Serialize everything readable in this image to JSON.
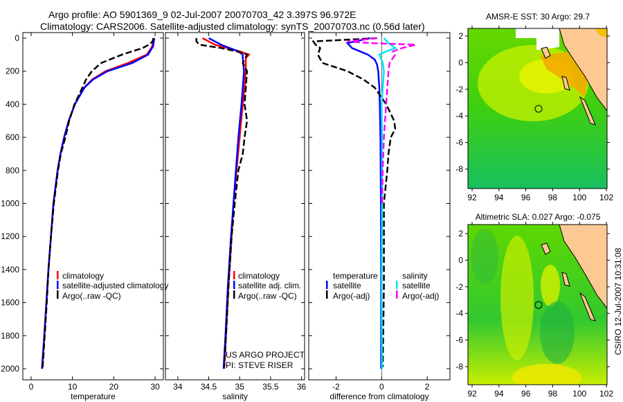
{
  "header": {
    "line1": "Argo profile: AO 5901369_9 02-Jul-2007 20070703_42 3.397S 96.972E",
    "line2": "Climatology: CARS2006. Satellite-adjusted climatology: synTS_20070703.nc (0.56d later)"
  },
  "colors": {
    "climatology": "#ff0000",
    "satellite": "#0000ff",
    "argo": "#000000",
    "sal_satellite": "#00e5ee",
    "sal_argo": "#ff00ff",
    "land": "#fcc993"
  },
  "chart_data": [
    {
      "type": "line",
      "xlabel": "temperature",
      "xlim": [
        -2,
        32
      ],
      "ylim": [
        2050,
        -30
      ],
      "xticks": [
        0,
        10,
        20,
        30
      ],
      "yticks": [
        0,
        200,
        400,
        600,
        800,
        1000,
        1200,
        1400,
        1600,
        1800,
        2000
      ],
      "legend": [
        "climatology",
        "satellite-adjusted climatology",
        "Argo(..raw -QC)"
      ],
      "series": [
        {
          "name": "climatology",
          "color_key": "climatology",
          "dash": false,
          "depth": [
            0,
            50,
            100,
            150,
            200,
            250,
            300,
            400,
            500,
            600,
            700,
            800,
            1000,
            1200,
            1400,
            1600,
            1800,
            2000
          ],
          "values": [
            29.6,
            29.3,
            28,
            23.5,
            18,
            14.8,
            12.8,
            10.6,
            9.1,
            8,
            7.1,
            6.4,
            5.4,
            4.8,
            4.2,
            3.7,
            3.2,
            2.7
          ]
        },
        {
          "name": "satellite-adjusted climatology",
          "color_key": "satellite",
          "dash": false,
          "depth": [
            0,
            50,
            100,
            150,
            200,
            250,
            300,
            400,
            500,
            600,
            700,
            800,
            1000,
            1200,
            1400,
            1600,
            1800,
            2000
          ],
          "values": [
            29.8,
            29.5,
            28.3,
            24.5,
            18.5,
            15,
            12.9,
            10.6,
            9.1,
            8,
            7.1,
            6.4,
            5.4,
            4.8,
            4.2,
            3.7,
            3.2,
            2.6
          ]
        },
        {
          "name": "Argo(..raw -QC)",
          "color_key": "argo",
          "dash": true,
          "depth": [
            0,
            20,
            40,
            60,
            100,
            150,
            200,
            250,
            300,
            400,
            500,
            600,
            700,
            800,
            1000,
            1200,
            1400,
            1600,
            1800,
            1990
          ],
          "values": [
            29.6,
            29.4,
            28.5,
            27,
            22,
            17,
            14.7,
            13.3,
            12.4,
            10.5,
            9.2,
            8.3,
            7.2,
            6.5,
            5.5,
            4.8,
            4.2,
            3.8,
            3.3,
            2.8
          ]
        }
      ]
    },
    {
      "type": "line",
      "xlabel": "salinity",
      "xlim": [
        33.8,
        36.05
      ],
      "ylim": [
        2050,
        -30
      ],
      "xticks": [
        34,
        34.5,
        35,
        35.5,
        36
      ],
      "legend": [
        "climatology",
        "satellite adj. clim.",
        "Argo(..raw -QC)"
      ],
      "annotation": [
        "US ARGO PROJECT",
        "PI: STEVE RISER"
      ],
      "series": [
        {
          "name": "climatology",
          "color_key": "climatology",
          "dash": false,
          "depth": [
            0,
            40,
            80,
            100,
            120,
            200,
            300,
            400,
            600,
            800,
            1000,
            1200,
            1500,
            1800,
            2000
          ],
          "values": [
            34.4,
            34.6,
            35.0,
            35.15,
            35.1,
            35.1,
            35.08,
            35.05,
            35.0,
            34.95,
            34.9,
            34.87,
            34.82,
            34.78,
            34.75
          ]
        },
        {
          "name": "satellite adj. clim.",
          "color_key": "satellite",
          "dash": false,
          "depth": [
            0,
            40,
            80,
            100,
            120,
            200,
            300,
            400,
            600,
            800,
            1000,
            1200,
            1500,
            1800,
            2000
          ],
          "values": [
            34.5,
            34.7,
            34.98,
            35.05,
            35.05,
            35.07,
            35.05,
            35.03,
            34.98,
            34.94,
            34.9,
            34.86,
            34.81,
            34.77,
            34.74
          ]
        },
        {
          "name": "Argo(..raw -QC)",
          "color_key": "argo",
          "dash": true,
          "depth": [
            0,
            20,
            40,
            60,
            80,
            100,
            150,
            200,
            300,
            400,
            500,
            600,
            700,
            800,
            1000,
            1200,
            1500,
            1800,
            1990
          ],
          "values": [
            34.3,
            34.3,
            34.35,
            34.7,
            34.95,
            35.12,
            35.05,
            35.12,
            35.1,
            35.08,
            35.12,
            35.08,
            35.05,
            34.98,
            34.92,
            34.87,
            34.82,
            34.78,
            34.75
          ]
        }
      ]
    },
    {
      "type": "line",
      "xlabel": "difference from climatology",
      "xlim": [
        -3.2,
        3.0
      ],
      "ylim": [
        2050,
        -30
      ],
      "xticks": [
        -2,
        0,
        2
      ],
      "legend": {
        "temperature": "temperature",
        "salinity": "salinity",
        "t_sat": "satellite",
        "t_argo": "Argo(-adj)",
        "s_sat": "satellite",
        "s_argo": "Argo(-adj)"
      },
      "series": [
        {
          "name": "temperature satellite",
          "color_key": "satellite",
          "dash": false,
          "depth": [
            0,
            30,
            60,
            100,
            130,
            160,
            200,
            300,
            400,
            600,
            1000,
            1500,
            2000
          ],
          "values": [
            -0.5,
            -1.5,
            -1.3,
            -0.6,
            -0.3,
            -0.2,
            -0.15,
            -0.1,
            -0.08,
            -0.05,
            -0.03,
            -0.02,
            -0.02
          ]
        },
        {
          "name": "temperature Argo(-adj)",
          "color_key": "argo",
          "dash": true,
          "depth": [
            0,
            20,
            40,
            60,
            100,
            150,
            200,
            250,
            300,
            400,
            500,
            550,
            600,
            700,
            800,
            1000,
            1500,
            1990
          ],
          "values": [
            -0.2,
            -3.0,
            -2.9,
            -2.7,
            -2.8,
            -2.6,
            -1.5,
            -0.8,
            -0.3,
            0.2,
            0.55,
            0.6,
            0.4,
            0.3,
            0.25,
            0.1,
            0.1,
            0.05
          ]
        },
        {
          "name": "salinity satellite",
          "color_key": "sal_satellite",
          "dash": false,
          "depth": [
            0,
            30,
            60,
            80,
            100,
            150,
            200,
            300,
            400,
            600,
            1000,
            1500,
            2000
          ],
          "values": [
            0.1,
            0.3,
            0.6,
            0.2,
            -0.1,
            0.05,
            0.1,
            0.05,
            0.0,
            0.02,
            0.02,
            0.0,
            0.02
          ]
        },
        {
          "name": "salinity Argo(-adj)",
          "color_key": "sal_argo",
          "dash": true,
          "depth": [
            0,
            20,
            30,
            40,
            60,
            80,
            100,
            150,
            200,
            300,
            400,
            500,
            600,
            800,
            1000
          ],
          "values": [
            -0.2,
            -1.5,
            -0.5,
            1.5,
            0.9,
            0.5,
            0.6,
            0.35,
            0.3,
            0.25,
            0.2,
            0.15,
            0.1,
            0.05,
            0.02
          ]
        }
      ]
    },
    {
      "type": "heatmap",
      "title": "AMSR-E SST: 30 Argo: 29.7",
      "xticks": [
        92,
        94,
        96,
        98,
        100,
        102
      ],
      "yticks": [
        2,
        0,
        -2,
        -4,
        -6,
        -8
      ],
      "argo_position": {
        "lon": 96.972,
        "lat": -3.397
      }
    },
    {
      "type": "heatmap",
      "title": "Altimetric SLA: 0.027 Argo: -0.075",
      "xticks": [
        92,
        94,
        96,
        98,
        100,
        102
      ],
      "yticks": [
        2,
        0,
        -2,
        -4,
        -6,
        -8
      ],
      "argo_position": {
        "lon": 96.972,
        "lat": -3.397
      }
    }
  ],
  "footer": {
    "credit": "CSIRO 12-Jul-2007 10:31:08"
  }
}
